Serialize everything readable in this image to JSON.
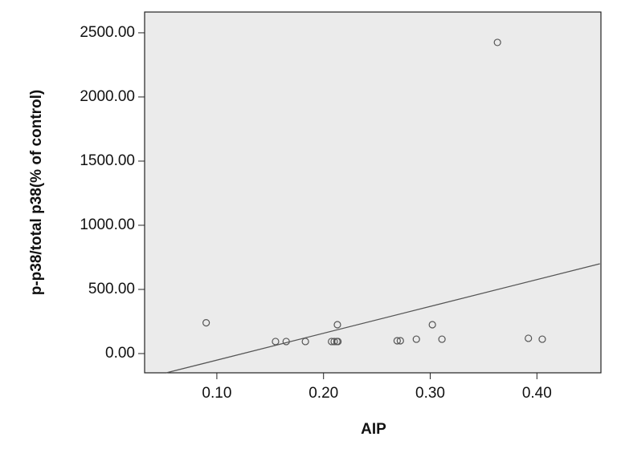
{
  "chart_data": {
    "type": "scatter",
    "x_label": "AIP",
    "y_label": "p-p38/total p38(% of control)",
    "color": "#555555",
    "background": "#ebebeb",
    "x": [
      0.09,
      0.155,
      0.165,
      0.183,
      0.2075,
      0.21,
      0.213,
      0.2125,
      0.2135,
      0.269,
      0.272,
      0.287,
      0.302,
      0.311,
      0.363,
      0.392,
      0.405
    ],
    "values": [
      240,
      94,
      94,
      94,
      94,
      94,
      225,
      94,
      94,
      100,
      100,
      112,
      225,
      112,
      2425,
      119,
      112
    ],
    "fit_line": {
      "x": [
        0.0526,
        0.459
      ],
      "y": [
        -150,
        700
      ]
    },
    "xlim": [
      0.0323,
      0.46
    ],
    "ylim": [
      -150,
      2662
    ],
    "xticks": [
      {
        "value": 0.1,
        "label": "0.10"
      },
      {
        "value": 0.2,
        "label": "0.20"
      },
      {
        "value": 0.3,
        "label": "0.30"
      },
      {
        "value": 0.4,
        "label": "0.40"
      }
    ],
    "yticks": [
      {
        "value": 0,
        "label": "0.00"
      },
      {
        "value": 500,
        "label": "500.00"
      },
      {
        "value": 1000,
        "label": "1000.00"
      },
      {
        "value": 1500,
        "label": "1500.00"
      },
      {
        "value": 2000,
        "label": "2000.00"
      },
      {
        "value": 2500,
        "label": "2500.00"
      }
    ]
  }
}
